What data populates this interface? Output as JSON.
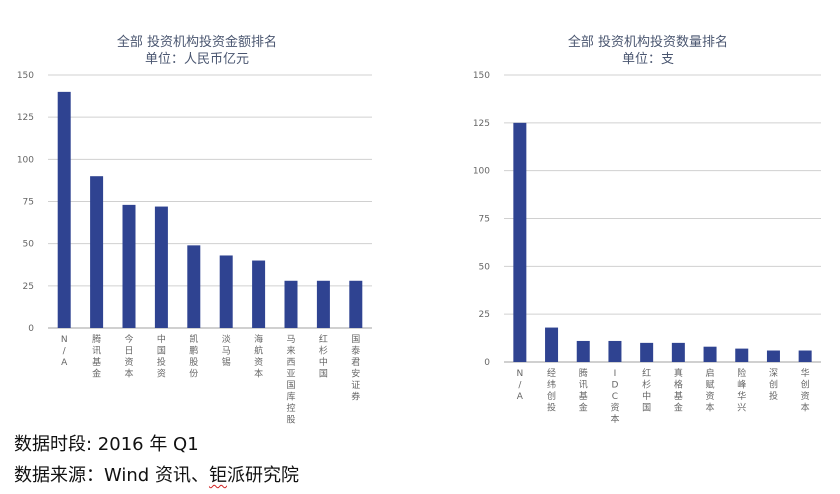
{
  "colors": {
    "bar": "#2f4391",
    "grid": "#d0d0d0",
    "axis": "#a0a0a0"
  },
  "chart_data": [
    {
      "type": "bar",
      "title": "全部 投资机构投资金额排名",
      "subtitle": "单位：人民币亿元",
      "categories": [
        "N/A",
        "腾讯基金",
        "今日资本",
        "中国投资",
        "凯鹏股份",
        "淡马锡",
        "海航资本",
        "马来西亚国库控股",
        "红杉中国",
        "国泰君安证券"
      ],
      "values": [
        140,
        90,
        73,
        72,
        49,
        43,
        40,
        28,
        28,
        28
      ],
      "yticks": [
        0,
        25,
        50,
        75,
        100,
        125,
        150
      ],
      "ylim": [
        0,
        150
      ],
      "xlabel": "",
      "ylabel": ""
    },
    {
      "type": "bar",
      "title": "全部 投资机构投资数量排名",
      "subtitle": "单位：支",
      "categories": [
        "N/A",
        "经纬创投",
        "腾讯基金",
        "IDC资本",
        "红杉中国",
        "真格基金",
        "启赋资本",
        "险峰华兴",
        "深创投",
        "华创资本"
      ],
      "values": [
        125,
        18,
        11,
        11,
        10,
        10,
        8,
        7,
        6,
        6
      ],
      "yticks": [
        0,
        25,
        50,
        75,
        100,
        125,
        150
      ],
      "ylim": [
        0,
        150
      ],
      "xlabel": "",
      "ylabel": ""
    }
  ],
  "footer": {
    "period": "数据时段: 2016 年 Q1",
    "source_prefix": "数据来源：Wind 资讯、",
    "source_highlight": "钜",
    "source_suffix": "派研究院"
  }
}
